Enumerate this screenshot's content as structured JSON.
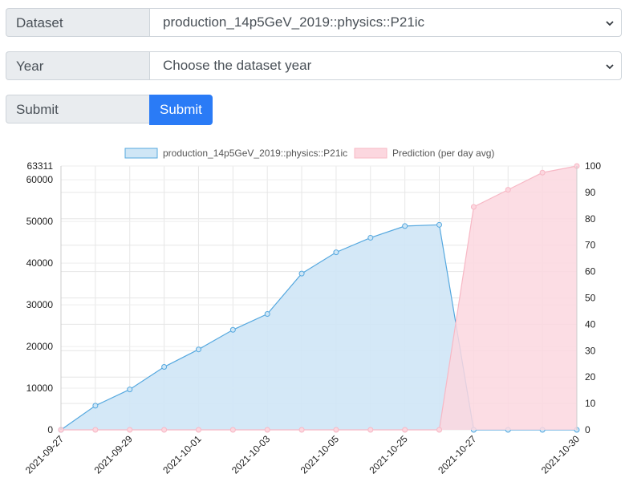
{
  "form": {
    "dataset_label": "Dataset",
    "dataset_value": "production_14p5GeV_2019::physics::P21ic",
    "year_label": "Year",
    "year_value": "Choose the dataset year",
    "submit_label": "Submit",
    "submit_button": "Submit"
  },
  "colors": {
    "accent": "#2a7bf6",
    "series1_line": "#55a8df",
    "series1_fill": "#cfe6f6",
    "series2_line": "#f7b8c5",
    "series2_fill": "#fcd7df"
  },
  "chart_data": {
    "type": "area",
    "x_ticks": [
      "2021-09-27",
      "2021-09-29",
      "2021-10-01",
      "2021-10-03",
      "2021-10-05",
      "2021-10-25",
      "2021-10-27",
      "2021-10-30"
    ],
    "left_axis": {
      "ticks": [
        0,
        10000,
        20000,
        30000,
        40000,
        50000,
        60000,
        63311
      ],
      "ylim": [
        0,
        63311
      ]
    },
    "right_axis": {
      "ticks": [
        0,
        10,
        20,
        30,
        40,
        50,
        60,
        70,
        80,
        90,
        100
      ],
      "ylim": [
        0,
        100
      ]
    },
    "legend_position": "top-center",
    "grid": true,
    "series": [
      {
        "name": "production_14p5GeV_2019::physics::P21ic",
        "axis": "left",
        "values": [
          0,
          5800,
          9700,
          15100,
          19300,
          24000,
          27800,
          37500,
          42600,
          46100,
          48900,
          49200,
          0,
          0,
          0,
          0
        ]
      },
      {
        "name": "Prediction (per day avg)",
        "axis": "right",
        "values": [
          0,
          0,
          0,
          0,
          0,
          0,
          0,
          0,
          0,
          0,
          0,
          0,
          84.5,
          91,
          97.5,
          100
        ]
      }
    ]
  }
}
